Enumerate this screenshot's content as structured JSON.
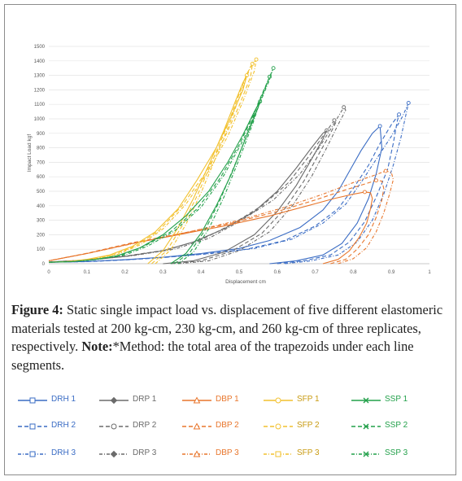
{
  "chart_data": {
    "type": "line",
    "title": "",
    "xlabel": "Displacement cm",
    "ylabel": "Impact Load kgf",
    "xlim": [
      0,
      1
    ],
    "ylim": [
      0,
      1500
    ],
    "x_ticks": [
      "0",
      "0.1",
      "0.2",
      "0.3",
      "0.4",
      "0.5",
      "0.6",
      "0.7",
      "0.8",
      "0.9",
      "1"
    ],
    "y_ticks": [
      "0",
      "100",
      "200",
      "300",
      "400",
      "500",
      "600",
      "700",
      "800",
      "900",
      "1000",
      "1100",
      "1200",
      "1300",
      "1400",
      "1500"
    ],
    "grid": true,
    "legend_position": "bottom",
    "colors": {
      "DRH": "#3a6cc4",
      "DRP": "#6b6b6b",
      "DBP": "#e8762c",
      "SFP": "#f2c12e",
      "SSP": "#22a04a"
    },
    "series": [
      {
        "name": "DRH 1",
        "dash": "solid",
        "color": "#3a6cc4",
        "x": [
          0.58,
          0.65,
          0.72,
          0.77,
          0.81,
          0.84,
          0.86,
          0.875,
          0.87,
          0.85,
          0.82,
          0.79,
          0.76,
          0.72,
          0.66,
          0.58,
          0.5,
          0.4,
          0.3,
          0.2,
          0.1,
          0.0
        ],
        "y": [
          0,
          20,
          60,
          140,
          280,
          450,
          620,
          800,
          950,
          900,
          780,
          640,
          500,
          370,
          250,
          160,
          105,
          70,
          45,
          28,
          15,
          10
        ]
      },
      {
        "name": "DRH 2",
        "dash": "dash",
        "color": "#3a6cc4",
        "x": [
          0.6,
          0.67,
          0.74,
          0.79,
          0.83,
          0.86,
          0.89,
          0.905,
          0.915,
          0.92,
          0.9,
          0.87,
          0.84,
          0.8,
          0.76,
          0.7,
          0.62,
          0.52,
          0.4,
          0.3,
          0.2,
          0.1,
          0.0
        ],
        "y": [
          0,
          20,
          60,
          150,
          290,
          460,
          650,
          830,
          980,
          1030,
          960,
          830,
          680,
          520,
          380,
          260,
          160,
          100,
          65,
          42,
          26,
          14,
          10
        ]
      },
      {
        "name": "DRH 3",
        "dash": "dashdot",
        "color": "#3a6cc4",
        "x": [
          0.62,
          0.69,
          0.76,
          0.81,
          0.85,
          0.88,
          0.905,
          0.925,
          0.94,
          0.945,
          0.93,
          0.9,
          0.86,
          0.82,
          0.78,
          0.72,
          0.64,
          0.54,
          0.42,
          0.3,
          0.2,
          0.1,
          0.0
        ],
        "y": [
          0,
          20,
          60,
          150,
          300,
          480,
          680,
          870,
          1050,
          1110,
          1020,
          880,
          720,
          560,
          410,
          280,
          170,
          105,
          68,
          44,
          27,
          15,
          10
        ]
      },
      {
        "name": "DRP 1",
        "dash": "solid",
        "color": "#6b6b6b",
        "x": [
          0.3,
          0.38,
          0.46,
          0.54,
          0.6,
          0.65,
          0.69,
          0.72,
          0.73,
          0.72,
          0.69,
          0.65,
          0.6,
          0.54,
          0.46,
          0.38,
          0.3,
          0.2,
          0.1,
          0.0
        ],
        "y": [
          0,
          20,
          80,
          200,
          360,
          540,
          720,
          860,
          920,
          900,
          800,
          660,
          500,
          360,
          240,
          150,
          90,
          50,
          25,
          12
        ]
      },
      {
        "name": "DRP 2",
        "dash": "dash",
        "color": "#6b6b6b",
        "x": [
          0.32,
          0.4,
          0.48,
          0.56,
          0.62,
          0.67,
          0.71,
          0.74,
          0.755,
          0.75,
          0.72,
          0.68,
          0.63,
          0.56,
          0.48,
          0.4,
          0.31,
          0.2,
          0.1,
          0.0
        ],
        "y": [
          0,
          20,
          85,
          210,
          380,
          570,
          760,
          900,
          980,
          990,
          880,
          730,
          560,
          400,
          270,
          165,
          95,
          52,
          26,
          12
        ]
      },
      {
        "name": "DRP 3",
        "dash": "dashdot",
        "color": "#6b6b6b",
        "x": [
          0.34,
          0.42,
          0.5,
          0.58,
          0.64,
          0.69,
          0.73,
          0.76,
          0.78,
          0.775,
          0.75,
          0.71,
          0.66,
          0.59,
          0.5,
          0.42,
          0.33,
          0.22,
          0.11,
          0.0
        ],
        "y": [
          0,
          20,
          90,
          220,
          400,
          600,
          800,
          960,
          1060,
          1080,
          970,
          800,
          620,
          440,
          290,
          175,
          100,
          55,
          27,
          12
        ]
      },
      {
        "name": "DBP 1",
        "dash": "solid",
        "color": "#e8762c",
        "x": [
          0.72,
          0.76,
          0.79,
          0.815,
          0.835,
          0.845,
          0.85,
          0.845,
          0.83,
          0.8,
          0.75,
          0.68,
          0.58,
          0.46,
          0.34,
          0.22,
          0.1,
          0.0
        ],
        "y": [
          0,
          30,
          90,
          180,
          280,
          380,
          450,
          490,
          495,
          480,
          450,
          400,
          330,
          260,
          200,
          140,
          70,
          20
        ]
      },
      {
        "name": "DBP 2",
        "dash": "dash",
        "color": "#e8762c",
        "x": [
          0.74,
          0.78,
          0.81,
          0.84,
          0.86,
          0.875,
          0.88,
          0.875,
          0.86,
          0.83,
          0.78,
          0.7,
          0.6,
          0.48,
          0.35,
          0.22,
          0.1,
          0.0
        ],
        "y": [
          0,
          30,
          100,
          200,
          320,
          440,
          520,
          570,
          575,
          550,
          510,
          440,
          360,
          280,
          210,
          145,
          72,
          20
        ]
      },
      {
        "name": "DBP 3",
        "dash": "dashdot",
        "color": "#e8762c",
        "x": [
          0.76,
          0.8,
          0.835,
          0.86,
          0.88,
          0.895,
          0.905,
          0.9,
          0.885,
          0.855,
          0.8,
          0.72,
          0.62,
          0.5,
          0.37,
          0.24,
          0.11,
          0.0
        ],
        "y": [
          0,
          35,
          110,
          220,
          350,
          480,
          580,
          630,
          640,
          610,
          560,
          480,
          390,
          300,
          220,
          150,
          75,
          20
        ]
      },
      {
        "name": "SFP 1",
        "dash": "solid",
        "color": "#f2c12e",
        "x": [
          0.26,
          0.3,
          0.34,
          0.38,
          0.42,
          0.46,
          0.49,
          0.51,
          0.52,
          0.51,
          0.48,
          0.44,
          0.39,
          0.34,
          0.28,
          0.22,
          0.16,
          0.1,
          0.05,
          0.0
        ],
        "y": [
          0,
          90,
          250,
          450,
          680,
          920,
          1120,
          1250,
          1300,
          1200,
          1020,
          800,
          580,
          380,
          220,
          120,
          60,
          30,
          15,
          10
        ]
      },
      {
        "name": "SFP 2",
        "dash": "dash",
        "color": "#f2c12e",
        "x": [
          0.27,
          0.31,
          0.35,
          0.39,
          0.43,
          0.47,
          0.5,
          0.52,
          0.535,
          0.53,
          0.5,
          0.46,
          0.41,
          0.35,
          0.29,
          0.23,
          0.17,
          0.11,
          0.05,
          0.0
        ],
        "y": [
          0,
          90,
          260,
          470,
          710,
          960,
          1170,
          1310,
          1380,
          1290,
          1090,
          860,
          620,
          400,
          230,
          125,
          62,
          31,
          15,
          10
        ]
      },
      {
        "name": "SFP 3",
        "dash": "dashdot",
        "color": "#f2c12e",
        "x": [
          0.28,
          0.32,
          0.36,
          0.4,
          0.44,
          0.48,
          0.51,
          0.53,
          0.545,
          0.54,
          0.51,
          0.47,
          0.42,
          0.36,
          0.3,
          0.24,
          0.18,
          0.12,
          0.06,
          0.0
        ],
        "y": [
          0,
          95,
          270,
          490,
          740,
          1000,
          1220,
          1360,
          1410,
          1330,
          1120,
          880,
          640,
          410,
          240,
          130,
          64,
          32,
          16,
          10
        ]
      },
      {
        "name": "SSP 1",
        "dash": "solid",
        "color": "#22a04a",
        "x": [
          0.32,
          0.36,
          0.4,
          0.44,
          0.48,
          0.51,
          0.535,
          0.55,
          0.555,
          0.54,
          0.51,
          0.47,
          0.42,
          0.36,
          0.3,
          0.24,
          0.18,
          0.12,
          0.06,
          0.0
        ],
        "y": [
          0,
          70,
          210,
          400,
          620,
          820,
          980,
          1080,
          1120,
          1050,
          890,
          700,
          500,
          330,
          200,
          110,
          55,
          28,
          14,
          10
        ]
      },
      {
        "name": "SSP 2",
        "dash": "dash",
        "color": "#22a04a",
        "x": [
          0.33,
          0.37,
          0.41,
          0.45,
          0.49,
          0.525,
          0.55,
          0.57,
          0.58,
          0.57,
          0.54,
          0.5,
          0.45,
          0.39,
          0.32,
          0.25,
          0.19,
          0.12,
          0.06,
          0.0
        ],
        "y": [
          0,
          75,
          230,
          440,
          690,
          920,
          1110,
          1230,
          1290,
          1220,
          1040,
          820,
          590,
          380,
          220,
          120,
          58,
          29,
          14,
          10
        ]
      },
      {
        "name": "SSP 3",
        "dash": "dashdot",
        "color": "#22a04a",
        "x": [
          0.34,
          0.38,
          0.42,
          0.46,
          0.5,
          0.535,
          0.56,
          0.58,
          0.59,
          0.58,
          0.55,
          0.51,
          0.46,
          0.4,
          0.33,
          0.26,
          0.2,
          0.13,
          0.06,
          0.0
        ],
        "y": [
          0,
          80,
          240,
          460,
          720,
          960,
          1160,
          1290,
          1350,
          1270,
          1080,
          850,
          610,
          390,
          225,
          122,
          59,
          30,
          14,
          10
        ]
      }
    ]
  },
  "caption": {
    "figure_label": "Figure 4:",
    "figure_text": " Static single impact load vs. displacement of five different elastomeric materials tested at 200 kg-cm, 230 kg-cm, and 260 kg-cm of three replicates, respectively. ",
    "note_label": "Note:",
    "note_text": "*Method: the total area of the trapezoids under each line segments."
  },
  "legend": [
    {
      "label": "DRH 1",
      "color": "#3a6cc4",
      "dash": "solid",
      "marker": "square"
    },
    {
      "label": "DRH 2",
      "color": "#3a6cc4",
      "dash": "dash",
      "marker": "square"
    },
    {
      "label": "DRH 3",
      "color": "#3a6cc4",
      "dash": "dashdot",
      "marker": "square"
    },
    {
      "label": "DRP 1",
      "color": "#6b6b6b",
      "dash": "solid",
      "marker": "diamond"
    },
    {
      "label": "DRP 2",
      "color": "#6b6b6b",
      "dash": "dash",
      "marker": "circle"
    },
    {
      "label": "DRP 3",
      "color": "#6b6b6b",
      "dash": "dashdot",
      "marker": "diamond"
    },
    {
      "label": "DBP 1",
      "color": "#e8762c",
      "dash": "solid",
      "marker": "triangle"
    },
    {
      "label": "DBP 2",
      "color": "#e8762c",
      "dash": "dash",
      "marker": "triangle"
    },
    {
      "label": "DBP 3",
      "color": "#e8762c",
      "dash": "dashdot",
      "marker": "triangle"
    },
    {
      "label": "SFP 1",
      "color": "#f2c12e",
      "dash": "solid",
      "marker": "circle"
    },
    {
      "label": "SFP 2",
      "color": "#f2c12e",
      "dash": "dash",
      "marker": "circle"
    },
    {
      "label": "SFP 3",
      "color": "#f2c12e",
      "dash": "dashdot",
      "marker": "square"
    },
    {
      "label": "SSP 1",
      "color": "#22a04a",
      "dash": "solid",
      "marker": "cross"
    },
    {
      "label": "SSP 2",
      "color": "#22a04a",
      "dash": "dash",
      "marker": "cross"
    },
    {
      "label": "SSP 3",
      "color": "#22a04a",
      "dash": "dashdot",
      "marker": "cross"
    }
  ]
}
